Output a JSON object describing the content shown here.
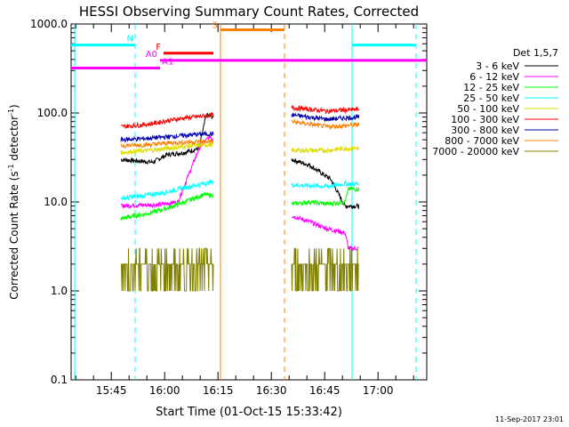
{
  "chart_data": {
    "type": "line",
    "title": "HESSI Observing Summary Count Rates, Corrected",
    "xlabel": "Start Time (01-Oct-15 15:33:42)",
    "ylabel_main": "Corrected Count Rate (s",
    "ylabel_sup1": "-1",
    "ylabel_mid": " detector",
    "ylabel_sup2": "-1",
    "ylabel_end": ")",
    "y_scale": "log",
    "ylim": [
      0.1,
      1000
    ],
    "xlim": [
      "15:33:42",
      "17:13:42"
    ],
    "x_ticks": [
      "15:45",
      "16:00",
      "16:15",
      "16:30",
      "16:45",
      "17:00"
    ],
    "y_ticks": [
      "1000.0",
      "100.0",
      "10.0",
      "1.0",
      "0.1"
    ],
    "legend_title": "Det 1,5,7",
    "footer": "11-Sep-2017 23:01",
    "flag_labels": {
      "N": "N",
      "F": "F",
      "S": "S",
      "A0": "A0",
      "A1": "A1"
    },
    "flags": [
      {
        "label": "N",
        "color": "#00ffff",
        "y": 580,
        "segments": [
          [
            "15:33:42",
            "15:51:42"
          ],
          [
            "16:52:42",
            "17:10:42"
          ]
        ]
      },
      {
        "label": "F",
        "color": "#ff0000",
        "y": 470,
        "segments": [
          [
            "15:59:42",
            "16:13:42"
          ]
        ]
      },
      {
        "label": "S",
        "color": "#ff8000",
        "y": 860,
        "segments": [
          [
            "16:15:42",
            "16:33:42"
          ]
        ]
      },
      {
        "label": "A0",
        "color": "#ff00ff",
        "y": 390,
        "segments": [
          [
            "15:58:42",
            "17:13:42"
          ]
        ]
      },
      {
        "label": "A1",
        "color": "#ff00ff",
        "y": 320,
        "segments": [
          [
            "15:33:42",
            "15:58:42"
          ]
        ]
      }
    ],
    "vlines": [
      {
        "time": "15:34:42",
        "color": "#00ffff",
        "style": "solid"
      },
      {
        "time": "15:51:42",
        "color": "#00ffff",
        "style": "dashed"
      },
      {
        "time": "16:15:42",
        "color": "#ff8000",
        "style": "solid"
      },
      {
        "time": "16:33:42",
        "color": "#ff8000",
        "style": "dashed"
      },
      {
        "time": "16:52:42",
        "color": "#00ffff",
        "style": "solid"
      },
      {
        "time": "17:10:42",
        "color": "#00ffff",
        "style": "dashed"
      }
    ],
    "segments": [
      [
        "15:47:42",
        "16:13:42"
      ],
      [
        "16:35:42",
        "16:54:42"
      ]
    ],
    "series": [
      {
        "name": "3 - 6 keV",
        "color": "#000000",
        "seg1": [
          [
            "15:47:42",
            30
          ],
          [
            "15:56:42",
            28
          ],
          [
            "16:00:42",
            34
          ],
          [
            "16:05:42",
            36
          ],
          [
            "16:09:42",
            40
          ],
          [
            "16:11:42",
            95
          ],
          [
            "16:13:42",
            90
          ]
        ],
        "seg2": [
          [
            "16:35:42",
            30
          ],
          [
            "16:40:42",
            26
          ],
          [
            "16:46:42",
            18
          ],
          [
            "16:50:42",
            9
          ],
          [
            "16:54:42",
            9
          ]
        ]
      },
      {
        "name": "6 - 12 keV",
        "color": "#ff00ff",
        "seg1": [
          [
            "15:47:42",
            9
          ],
          [
            "15:51:42",
            9.2
          ],
          [
            "15:58:42",
            9.3
          ],
          [
            "16:03:42",
            10
          ],
          [
            "16:06:42",
            20
          ],
          [
            "16:09:42",
            40
          ],
          [
            "16:12:42",
            55
          ],
          [
            "16:13:42",
            50
          ]
        ],
        "seg2": [
          [
            "16:35:42",
            7
          ],
          [
            "16:40:42",
            6
          ],
          [
            "16:45:42",
            5
          ],
          [
            "16:50:42",
            4.5
          ],
          [
            "16:51:42",
            3
          ],
          [
            "16:54:42",
            3
          ]
        ]
      },
      {
        "name": "12 - 25 keV",
        "color": "#00ff00",
        "seg1": [
          [
            "15:47:42",
            6.5
          ],
          [
            "15:55:42",
            7.5
          ],
          [
            "16:00:42",
            8.5
          ],
          [
            "16:05:42",
            10
          ],
          [
            "16:10:42",
            12
          ],
          [
            "16:13:42",
            12
          ]
        ],
        "seg2": [
          [
            "16:35:42",
            9.5
          ],
          [
            "16:40:42",
            10
          ],
          [
            "16:45:42",
            9.5
          ],
          [
            "16:50:42",
            10
          ],
          [
            "16:51:42",
            14
          ],
          [
            "16:54:42",
            14
          ]
        ]
      },
      {
        "name": "25 - 50 keV",
        "color": "#00ffff",
        "seg1": [
          [
            "15:47:42",
            11
          ],
          [
            "15:55:42",
            12
          ],
          [
            "16:00:42",
            13
          ],
          [
            "16:05:42",
            14.5
          ],
          [
            "16:10:42",
            16
          ],
          [
            "16:13:42",
            17
          ]
        ],
        "seg2": [
          [
            "16:35:42",
            15.5
          ],
          [
            "16:45:42",
            15
          ],
          [
            "16:50:42",
            16
          ],
          [
            "16:54:42",
            16
          ]
        ]
      },
      {
        "name": "50 - 100 keV",
        "color": "#dddd00",
        "seg1": [
          [
            "15:47:42",
            36
          ],
          [
            "15:55:42",
            38
          ],
          [
            "16:00:42",
            40
          ],
          [
            "16:05:42",
            42
          ],
          [
            "16:10:42",
            44
          ],
          [
            "16:13:42",
            44
          ]
        ],
        "seg2": [
          [
            "16:35:42",
            38
          ],
          [
            "16:45:42",
            38
          ],
          [
            "16:50:42",
            40
          ],
          [
            "16:54:42",
            40
          ]
        ]
      },
      {
        "name": "100 - 300 keV",
        "color": "#ff0000",
        "seg1": [
          [
            "15:47:42",
            70
          ],
          [
            "15:55:42",
            75
          ],
          [
            "16:00:42",
            82
          ],
          [
            "16:05:42",
            88
          ],
          [
            "16:10:42",
            92
          ],
          [
            "16:13:42",
            95
          ]
        ],
        "seg2": [
          [
            "16:35:42",
            115
          ],
          [
            "16:45:42",
            105
          ],
          [
            "16:50:42",
            108
          ],
          [
            "16:54:42",
            110
          ]
        ]
      },
      {
        "name": "300 - 800 keV",
        "color": "#0000aa",
        "seg1": [
          [
            "15:47:42",
            50
          ],
          [
            "15:55:42",
            52
          ],
          [
            "16:00:42",
            54
          ],
          [
            "16:05:42",
            56
          ],
          [
            "16:10:42",
            58
          ],
          [
            "16:13:42",
            58
          ]
        ],
        "seg2": [
          [
            "16:35:42",
            95
          ],
          [
            "16:45:42",
            85
          ],
          [
            "16:50:42",
            88
          ],
          [
            "16:54:42",
            90
          ]
        ]
      },
      {
        "name": "800 - 7000 keV",
        "color": "#ff8000",
        "seg1": [
          [
            "15:47:42",
            43
          ],
          [
            "15:55:42",
            44
          ],
          [
            "16:00:42",
            46
          ],
          [
            "16:05:42",
            47
          ],
          [
            "16:10:42",
            48
          ],
          [
            "16:13:42",
            48
          ]
        ],
        "seg2": [
          [
            "16:35:42",
            80
          ],
          [
            "16:45:42",
            70
          ],
          [
            "16:50:42",
            72
          ],
          [
            "16:54:42",
            74
          ]
        ]
      },
      {
        "name": "7000 - 20000 keV",
        "color": "#808000",
        "seg1": [
          [
            "15:47:42",
            2
          ],
          [
            "16:13:42",
            2
          ]
        ],
        "seg2": [
          [
            "16:35:42",
            2
          ],
          [
            "16:50:42",
            2
          ],
          [
            "16:51:42",
            2.5
          ],
          [
            "16:54:42",
            2.5
          ]
        ]
      }
    ]
  }
}
